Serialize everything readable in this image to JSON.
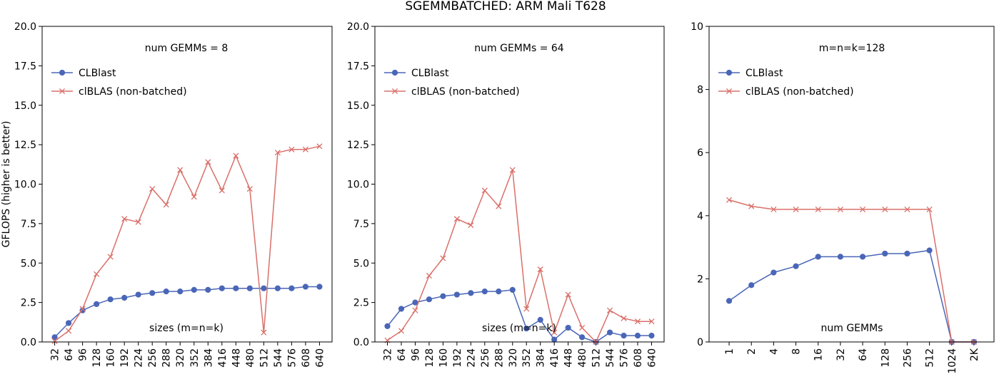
{
  "figure": {
    "title": "SGEMMBATCHED: ARM Mali T628"
  },
  "colors": {
    "clblast": "#4a66b7",
    "clblas": "#d9706a"
  },
  "chart_data": [
    {
      "type": "line",
      "annotation": "num GEMMs = 8",
      "xlabel": "sizes (m=n=k)",
      "ylabel": "GFLOPS (higher is better)",
      "ylim": [
        0,
        20
      ],
      "yticks": [
        "0.0",
        "2.5",
        "5.0",
        "7.5",
        "10.0",
        "12.5",
        "15.0",
        "17.5",
        "20.0"
      ],
      "categories": [
        "32",
        "64",
        "96",
        "128",
        "160",
        "192",
        "224",
        "256",
        "288",
        "320",
        "352",
        "384",
        "416",
        "448",
        "480",
        "512",
        "544",
        "576",
        "608",
        "640"
      ],
      "legend": "upper-left",
      "series": [
        {
          "name": "CLBlast",
          "marker": "circle",
          "values": [
            0.3,
            1.2,
            2.0,
            2.4,
            2.7,
            2.8,
            3.0,
            3.1,
            3.2,
            3.2,
            3.3,
            3.3,
            3.4,
            3.4,
            3.4,
            3.4,
            3.4,
            3.4,
            3.5,
            3.5
          ]
        },
        {
          "name": "clBLAS (non-batched)",
          "marker": "x",
          "values": [
            0.05,
            0.7,
            2.1,
            4.3,
            5.4,
            7.8,
            7.6,
            9.7,
            8.7,
            10.9,
            9.2,
            11.4,
            9.6,
            11.8,
            9.7,
            0.6,
            12.0,
            12.2,
            12.2,
            12.4
          ]
        }
      ]
    },
    {
      "type": "line",
      "annotation": "num GEMMs = 64",
      "xlabel": "sizes (m=n=k)",
      "ylabel": "",
      "ylim": [
        0,
        20
      ],
      "yticks": [
        "0.0",
        "2.5",
        "5.0",
        "7.5",
        "10.0",
        "12.5",
        "15.0",
        "17.5",
        "20.0"
      ],
      "categories": [
        "32",
        "64",
        "96",
        "128",
        "160",
        "192",
        "224",
        "256",
        "288",
        "320",
        "352",
        "384",
        "416",
        "448",
        "480",
        "512",
        "544",
        "576",
        "608",
        "640"
      ],
      "legend": "upper-left",
      "series": [
        {
          "name": "CLBlast",
          "marker": "circle",
          "values": [
            1.0,
            2.1,
            2.5,
            2.7,
            2.9,
            3.0,
            3.1,
            3.2,
            3.2,
            3.3,
            0.85,
            1.4,
            0.15,
            0.9,
            0.3,
            0.0,
            0.6,
            0.4,
            0.4,
            0.4
          ]
        },
        {
          "name": "clBLAS (non-batched)",
          "marker": "x",
          "values": [
            0.1,
            0.7,
            2.0,
            4.2,
            5.3,
            7.8,
            7.4,
            9.6,
            8.6,
            10.9,
            2.1,
            4.6,
            0.6,
            3.0,
            0.9,
            0.0,
            2.0,
            1.5,
            1.3,
            1.3
          ]
        }
      ]
    },
    {
      "type": "line",
      "annotation": "m=n=k=128",
      "xlabel": "num GEMMs",
      "ylabel": "",
      "ylim": [
        0,
        10
      ],
      "yticks": [
        "0",
        "2",
        "4",
        "6",
        "8",
        "10"
      ],
      "categories": [
        "1",
        "2",
        "4",
        "8",
        "16",
        "32",
        "64",
        "128",
        "256",
        "512",
        "1024",
        "2K"
      ],
      "legend": "upper-left",
      "series": [
        {
          "name": "CLBlast",
          "marker": "circle",
          "values": [
            1.3,
            1.8,
            2.2,
            2.4,
            2.7,
            2.7,
            2.7,
            2.8,
            2.8,
            2.9,
            0.0,
            0.0
          ]
        },
        {
          "name": "clBLAS (non-batched)",
          "marker": "x",
          "values": [
            4.5,
            4.3,
            4.2,
            4.2,
            4.2,
            4.2,
            4.2,
            4.2,
            4.2,
            4.2,
            0.0,
            0.0
          ]
        }
      ]
    }
  ]
}
